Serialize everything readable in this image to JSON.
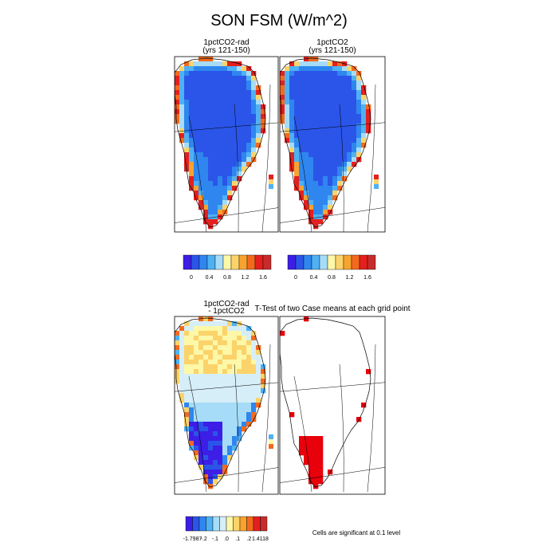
{
  "title": "SON FSM (W/m^2)",
  "panels": [
    {
      "id": "p1",
      "title_line1": "1pctCO2-rad",
      "title_line2": "(yrs 121-150)",
      "scheme": "seq"
    },
    {
      "id": "p2",
      "title_line1": "1pctCO2",
      "title_line2": "(yrs 121-150)",
      "scheme": "seq"
    },
    {
      "id": "p3",
      "title_line1": "1pctCO2-rad",
      "title_line2": "- 1pctCO2",
      "scheme": "diff"
    },
    {
      "id": "p4",
      "title_line1": "T-Test of two Case means at each grid point",
      "title_line2": "",
      "scheme": "sig"
    }
  ],
  "colorbar_top": {
    "colors": [
      "#3c1ee6",
      "#2b55e8",
      "#2f86ef",
      "#4fb1f4",
      "#a6dcf7",
      "#fdf7a8",
      "#fbd36a",
      "#f8a32f",
      "#f46a1d",
      "#e4201e",
      "#c82b2b"
    ],
    "labels": [
      "0",
      "0.4",
      "0.8",
      "1.2",
      "1.6"
    ]
  },
  "colorbar_bottom": {
    "colors": [
      "#3c1ee6",
      "#2b55e8",
      "#2f86ef",
      "#4fb1f4",
      "#a6dcf7",
      "#d6eef8",
      "#fdf7a8",
      "#fbd36a",
      "#f8a32f",
      "#f46a1d",
      "#e4201e",
      "#c82b2b"
    ],
    "labels": [
      "-1.7987",
      "-.2",
      "-.1",
      ".0",
      ".1",
      ".2",
      "1.4118"
    ]
  },
  "footnote": "Cells are significant at 0.1 level",
  "chart_data": [
    {
      "type": "heatmap",
      "title": "1pctCO2-rad (yrs 121-150)",
      "region": "Greenland",
      "levels": [
        0,
        0.2,
        0.4,
        0.6,
        0.8,
        1.0,
        1.2,
        1.4,
        1.6,
        1.8
      ],
      "summary": {
        "ice_sheet_interior": 0,
        "margins_southwest": 1.6
      }
    },
    {
      "type": "heatmap",
      "title": "1pctCO2 (yrs 121-150)",
      "region": "Greenland",
      "levels": [
        0,
        0.2,
        0.4,
        0.6,
        0.8,
        1.0,
        1.2,
        1.4,
        1.6,
        1.8
      ],
      "summary": {
        "ice_sheet_interior": 0,
        "margins_southwest": 1.6
      }
    },
    {
      "type": "heatmap",
      "title": "1pctCO2-rad - 1pctCO2",
      "region": "Greenland",
      "range": [
        -1.7987,
        1.4118
      ],
      "summary": {
        "north_interior": 0.1,
        "southwest": -1.7987
      }
    },
    {
      "type": "heatmap",
      "title": "T-Test of two Case means at each grid point",
      "region": "Greenland",
      "significance_level": 0.1
    }
  ]
}
